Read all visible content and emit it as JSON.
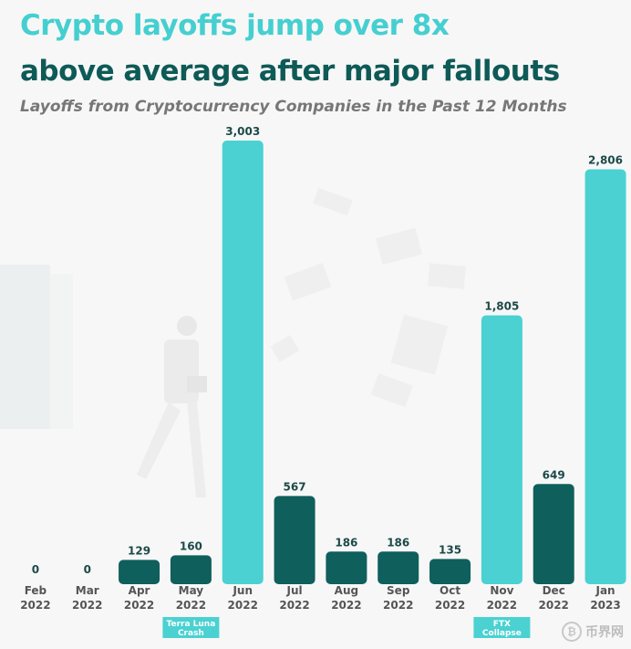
{
  "colors": {
    "title_accent": "#45cfd0",
    "title_dark": "#0e5a57",
    "subtitle": "#777777",
    "bar_teal": "#4bd1d2",
    "bar_dark": "#0f5f5c",
    "label_text": "#555555",
    "value_text": "#1c4a49",
    "annotation_bg": "#4bd1d2"
  },
  "header": {
    "title_line1": "Crypto layoffs jump over 8x",
    "title_line2": "above average after major fallouts",
    "subtitle": "Layoffs from Cryptocurrency Companies in the Past 12 Months"
  },
  "watermark": {
    "icon": "bitcoin-coin-icon",
    "icon_glyph": "₿",
    "text": "币界网"
  },
  "chart_data": {
    "type": "bar",
    "title": "Crypto layoffs jump over 8x above average after major fallouts",
    "subtitle": "Layoffs from Cryptocurrency Companies in the Past 12 Months",
    "categories": [
      [
        "Feb",
        "2022"
      ],
      [
        "Mar",
        "2022"
      ],
      [
        "Apr",
        "2022"
      ],
      [
        "May",
        "2022"
      ],
      [
        "Jun",
        "2022"
      ],
      [
        "Jul",
        "2022"
      ],
      [
        "Aug",
        "2022"
      ],
      [
        "Sep",
        "2022"
      ],
      [
        "Oct",
        "2022"
      ],
      [
        "Nov",
        "2022"
      ],
      [
        "Dec",
        "2022"
      ],
      [
        "Jan",
        "2023"
      ]
    ],
    "values": [
      0,
      0,
      129,
      160,
      3003,
      567,
      186,
      186,
      135,
      1805,
      649,
      2806
    ],
    "value_labels": [
      "0",
      "0",
      "129",
      "160",
      "3,003",
      "567",
      "186",
      "186",
      "135",
      "1,805",
      "649",
      "2,806"
    ],
    "bar_colors": [
      "dark",
      "dark",
      "dark",
      "dark",
      "teal",
      "dark",
      "dark",
      "dark",
      "dark",
      "teal",
      "dark",
      "teal"
    ],
    "ylim": [
      0,
      3003
    ],
    "grid": false,
    "xlabel": "",
    "ylabel": "",
    "annotations": [
      {
        "category_index": 3,
        "lines": [
          "Terra Luna",
          "Crash"
        ]
      },
      {
        "category_index": 9,
        "lines": [
          "FTX",
          "Collapse"
        ]
      }
    ]
  }
}
